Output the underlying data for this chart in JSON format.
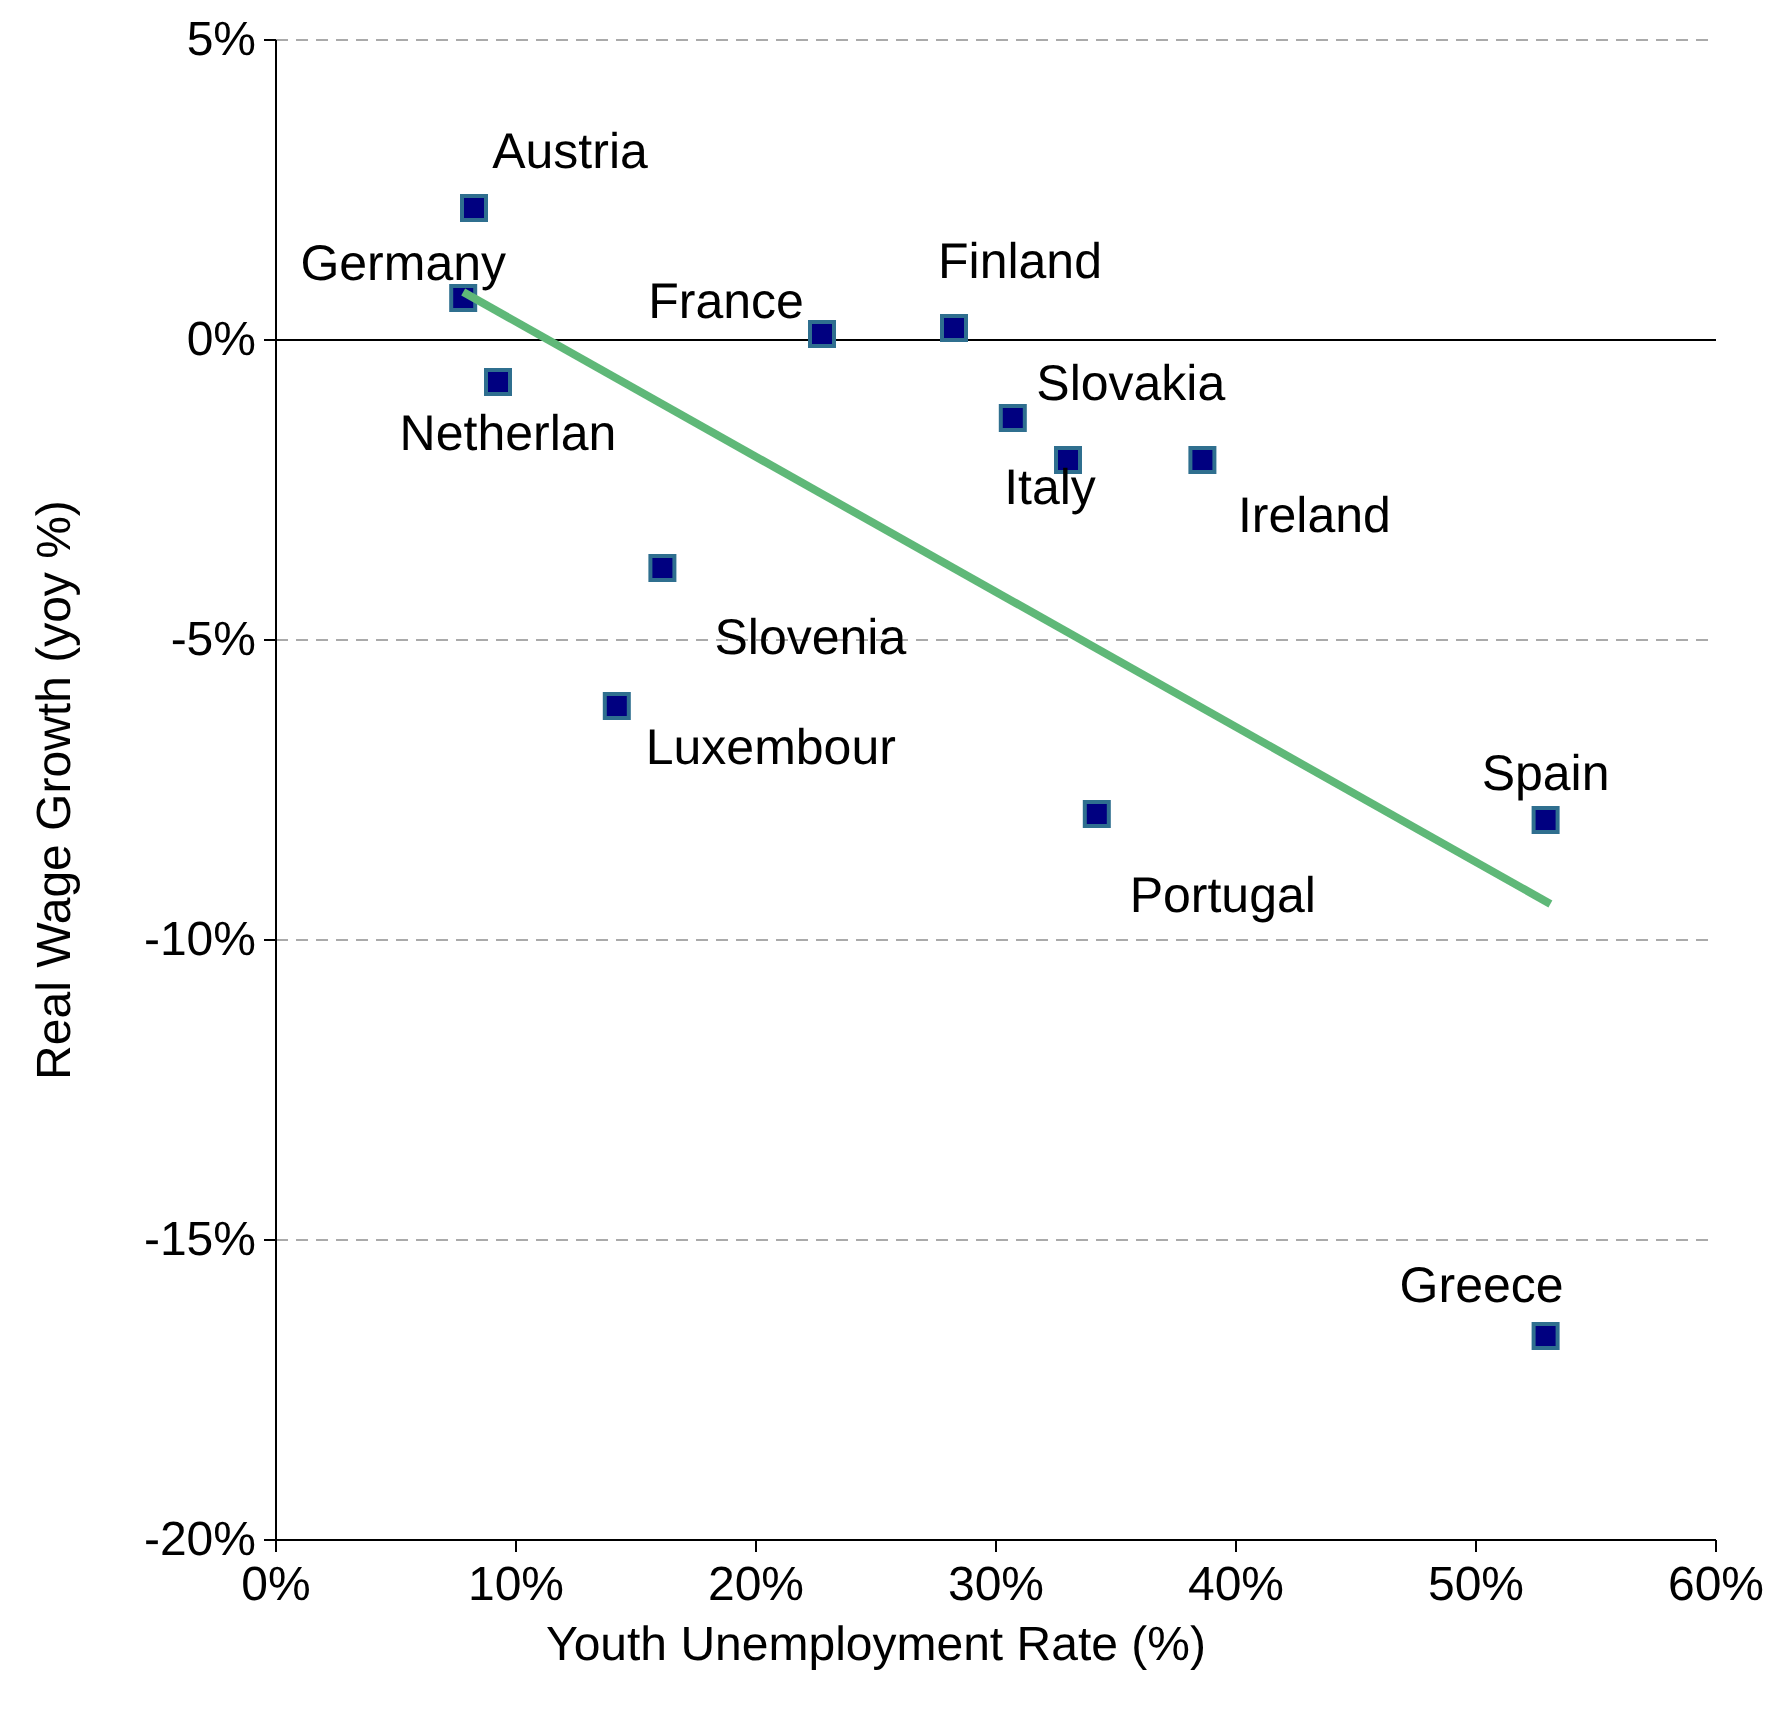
{
  "chart_data": {
    "type": "scatter",
    "xlabel": "Youth Unemployment Rate (%)",
    "ylabel": "Real Wage Growth (yoy %)",
    "xlim": [
      0,
      60
    ],
    "ylim": [
      -20,
      5
    ],
    "xticks": [
      {
        "value": 0,
        "label": "0%"
      },
      {
        "value": 10,
        "label": "10%"
      },
      {
        "value": 20,
        "label": "20%"
      },
      {
        "value": 30,
        "label": "30%"
      },
      {
        "value": 40,
        "label": "40%"
      },
      {
        "value": 50,
        "label": "50%"
      },
      {
        "value": 60,
        "label": "60%"
      }
    ],
    "yticks": [
      {
        "value": 5,
        "label": "5%"
      },
      {
        "value": 0,
        "label": "0%"
      },
      {
        "value": -5,
        "label": "-5%"
      },
      {
        "value": -10,
        "label": "-10%"
      },
      {
        "value": -15,
        "label": "-15%"
      },
      {
        "value": -20,
        "label": "-20%"
      }
    ],
    "grid": "y",
    "marker": "square",
    "ref_lines": [
      {
        "axis": "y",
        "value": 0,
        "color": "#000000",
        "line_style": "solid"
      }
    ],
    "series": [
      {
        "color": "#000080",
        "x": [
          8.25,
          7.8,
          9.25,
          22.75,
          28.25,
          30.7,
          33,
          38.6,
          16.1,
          14.2,
          34.2,
          52.9,
          52.9
        ],
        "values": [
          2.2,
          0.7,
          -0.7,
          0.1,
          0.2,
          -1.3,
          -2,
          -2,
          -3.8,
          -6.1,
          -7.9,
          -8,
          -16.6
        ]
      },
      {
        "type": "line",
        "color": "#5fb878",
        "marker": "none",
        "line_style": "solid",
        "x": [
          7.8,
          53.1
        ],
        "values": [
          0.8,
          -9.4
        ]
      }
    ],
    "annotations": [
      {
        "text": "Austria",
        "x": 8.25,
        "y": 2.2
      },
      {
        "text": "Germany",
        "x": 7.8,
        "y": 0.7
      },
      {
        "text": "Netherlan",
        "x": 9.25,
        "y": -0.7
      },
      {
        "text": "France",
        "x": 22.75,
        "y": 0.1
      },
      {
        "text": "Finland",
        "x": 28.25,
        "y": 0.2
      },
      {
        "text": "Slovakia",
        "x": 30.7,
        "y": -1.3
      },
      {
        "text": "Italy",
        "x": 33,
        "y": -2
      },
      {
        "text": "Ireland",
        "x": 38.6,
        "y": -2
      },
      {
        "text": "Slovenia",
        "x": 16.1,
        "y": -3.8
      },
      {
        "text": "Luxembour",
        "x": 14.2,
        "y": -6.1
      },
      {
        "text": "Portugal",
        "x": 34.2,
        "y": -7.9
      },
      {
        "text": "Spain",
        "x": 52.9,
        "y": -8
      },
      {
        "text": "Greece",
        "x": 52.9,
        "y": -16.6
      }
    ]
  }
}
